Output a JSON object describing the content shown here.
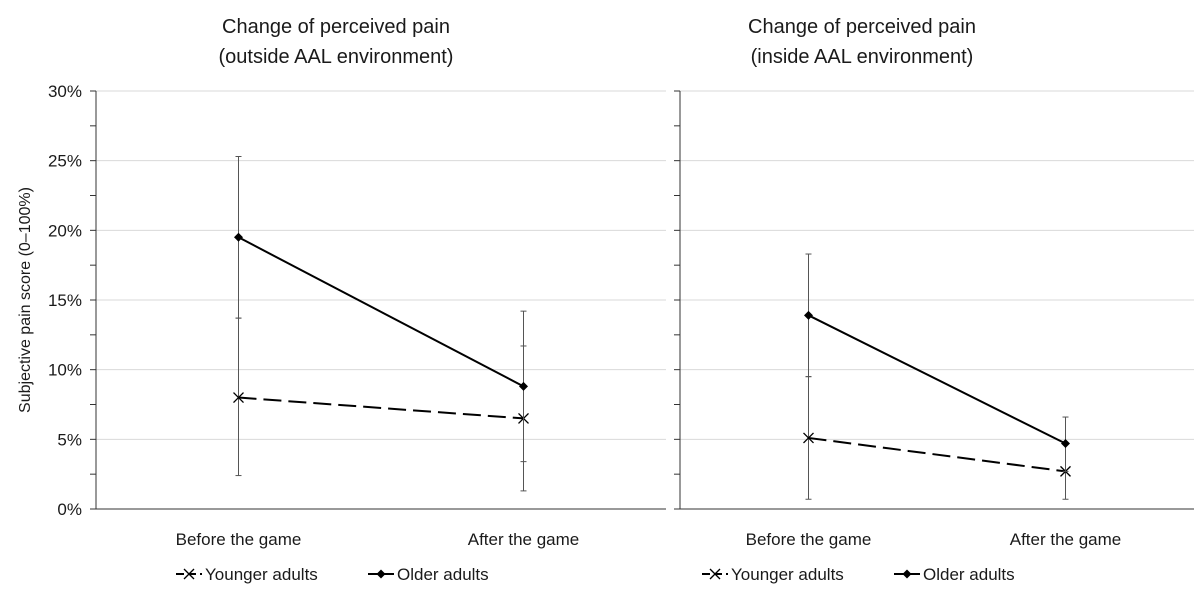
{
  "chart_data": [
    {
      "type": "line",
      "title_lines": [
        "Change of perceived pain",
        "(outside AAL environment)"
      ],
      "ylabel": "Subjective pain score (0–100%)",
      "ylim": [
        0,
        30
      ],
      "yticks": [
        "0%",
        "5%",
        "10%",
        "15%",
        "20%",
        "25%",
        "30%"
      ],
      "categories": [
        "Before the game",
        "After the game"
      ],
      "grid": true,
      "legend_position": "bottom",
      "series": [
        {
          "name": "Younger adults",
          "style": "dashed",
          "marker": "x",
          "values": [
            8.0,
            6.5
          ],
          "error_low": [
            2.4,
            1.3
          ],
          "error_high": [
            13.7,
            11.7
          ]
        },
        {
          "name": "Older adults",
          "style": "solid",
          "marker": "diamond",
          "values": [
            19.5,
            8.8
          ],
          "error_low": [
            13.7,
            3.4
          ],
          "error_high": [
            25.3,
            14.2
          ]
        }
      ]
    },
    {
      "type": "line",
      "title_lines": [
        "Change of perceived pain",
        "(inside AAL environment)"
      ],
      "ylabel": "",
      "ylim": [
        0,
        30
      ],
      "yticks": [],
      "categories": [
        "Before the game",
        "After the game"
      ],
      "grid": true,
      "legend_position": "bottom",
      "series": [
        {
          "name": "Younger adults",
          "style": "dashed",
          "marker": "x",
          "values": [
            5.1,
            2.7
          ],
          "error_low": [
            0.7,
            0.7
          ],
          "error_high": [
            9.5,
            4.7
          ]
        },
        {
          "name": "Older adults",
          "style": "solid",
          "marker": "diamond",
          "values": [
            13.9,
            4.7
          ],
          "error_low": [
            9.5,
            2.7
          ],
          "error_high": [
            18.3,
            6.6
          ]
        }
      ]
    }
  ],
  "colors": {
    "line": "#000000",
    "grid": "#d9d9d9",
    "axis": "#333333",
    "errorbar": "#555555"
  }
}
